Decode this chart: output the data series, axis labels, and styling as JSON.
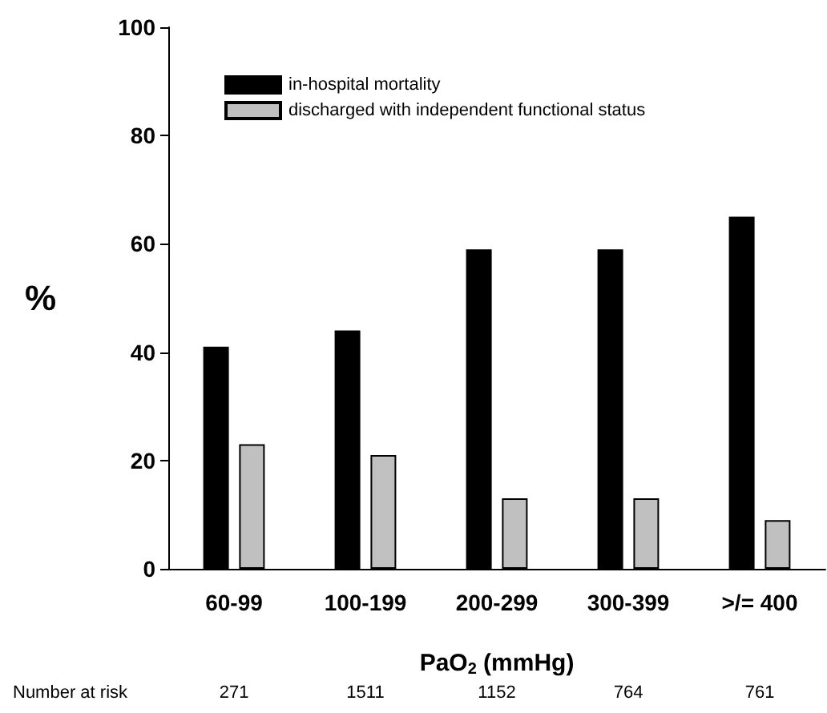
{
  "chart_data": {
    "type": "bar",
    "ylabel": "%",
    "xlabel": "PaO$_{2}$ (mmHg)",
    "categories": [
      "60-99",
      "100-199",
      "200-299",
      "300-399",
      ">/= 400"
    ],
    "series": [
      {
        "name": "in-hospital mortality",
        "color": "#000000",
        "values": [
          41,
          44,
          59,
          59,
          65
        ]
      },
      {
        "name": "discharged with independent functional status",
        "color": "#c0c0c0",
        "values": [
          23,
          21,
          13,
          13,
          9
        ]
      }
    ],
    "ylim": [
      0,
      100
    ],
    "yticks": [
      0,
      20,
      40,
      60,
      80,
      100
    ],
    "grid": false,
    "legend": "top left",
    "annotations": [
      "Number at risk",
      "271",
      "1511",
      "1152",
      "764",
      "761"
    ]
  }
}
